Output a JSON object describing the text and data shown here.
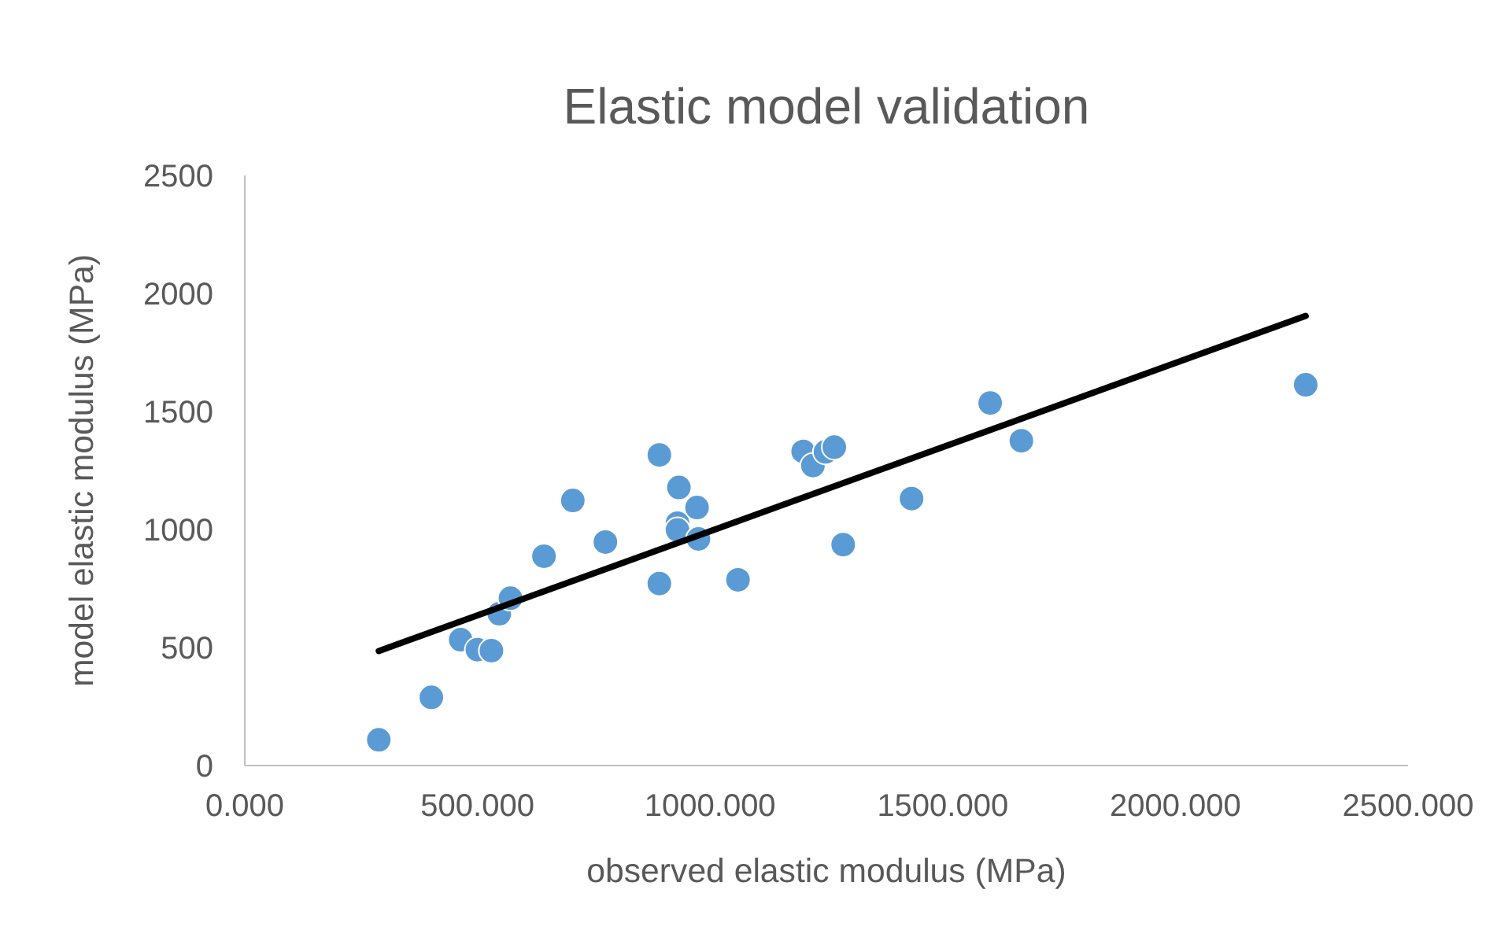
{
  "chart_data": {
    "type": "scatter",
    "title": "Elastic model validation",
    "xlabel": "observed elastic modulus (MPa)",
    "ylabel": "model elastic modulus (MPa)",
    "xlim": [
      0,
      2500
    ],
    "ylim": [
      0,
      2500
    ],
    "xticks": [
      {
        "value": 0,
        "label": "0.000"
      },
      {
        "value": 500,
        "label": "500.000"
      },
      {
        "value": 1000,
        "label": "1000.000"
      },
      {
        "value": 1500,
        "label": "1500.000"
      },
      {
        "value": 2000,
        "label": "2000.000"
      },
      {
        "value": 2500,
        "label": "2500.000"
      }
    ],
    "yticks": [
      0,
      500,
      1000,
      1500,
      2000,
      2500
    ],
    "grid": false,
    "series": [
      {
        "marker": "circle",
        "color": "#5b9bd5",
        "x": [
          288,
          401,
          464,
          500,
          530,
          547,
          571,
          643,
          705,
          775,
          891,
          891,
          933,
          930,
          930,
          972,
          975,
          1060,
          1200,
          1221,
          1248,
          1267,
          1286,
          1433,
          1602,
          1669,
          2280
        ],
        "values": [
          109,
          289,
          533,
          491,
          487,
          643,
          709,
          887,
          1123,
          947,
          1316,
          771,
          1178,
          1027,
          998,
          1093,
          960,
          787,
          1331,
          1271,
          1329,
          1349,
          936,
          1131,
          1536,
          1376,
          1613
        ]
      },
      {
        "type": "line",
        "color": "#000000",
        "x": [
          288,
          2280
        ],
        "values": [
          485,
          1905
        ]
      }
    ]
  }
}
